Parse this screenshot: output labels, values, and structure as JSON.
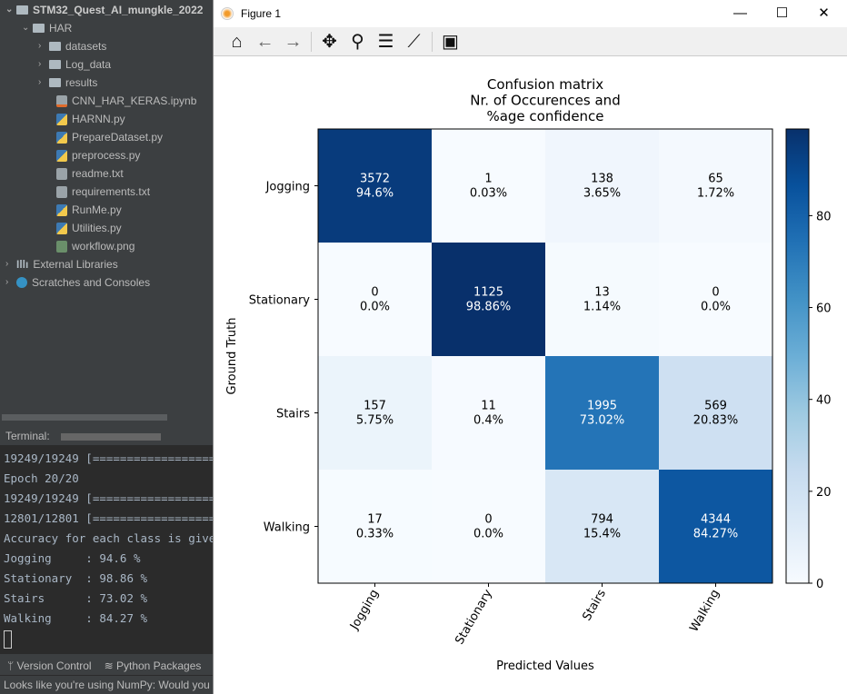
{
  "project": {
    "root": "STM32_Quest_AI_mungkle_2022",
    "har": "HAR",
    "folders": [
      "datasets",
      "Log_data",
      "results"
    ],
    "files": [
      {
        "name": "CNN_HAR_KERAS.ipynb",
        "type": "nb"
      },
      {
        "name": "HARNN.py",
        "type": "py"
      },
      {
        "name": "PrepareDataset.py",
        "type": "py"
      },
      {
        "name": "preprocess.py",
        "type": "py"
      },
      {
        "name": "readme.txt",
        "type": "txt"
      },
      {
        "name": "requirements.txt",
        "type": "txt"
      },
      {
        "name": "RunMe.py",
        "type": "py"
      },
      {
        "name": "Utilities.py",
        "type": "py"
      },
      {
        "name": "workflow.png",
        "type": "png"
      }
    ],
    "external": "External Libraries",
    "scratches": "Scratches and Consoles"
  },
  "terminal": {
    "label": "Terminal:",
    "lines": [
      "19249/19249 [==================",
      "Epoch 20/20",
      "19249/19249 [==================",
      "12801/12801 [==================",
      "Accuracy for each class is given",
      "Jogging     : 94.6 %",
      "Stationary  : 98.86 %",
      "Stairs      : 73.02 %",
      "Walking     : 84.27 %"
    ]
  },
  "bottom": {
    "version_control": "Version Control",
    "python_packages": "Python Packages",
    "status": "Looks like you're using NumPy: Would you"
  },
  "window": {
    "title": "Figure 1",
    "min": "—",
    "max": "☐",
    "close": "✕"
  },
  "chart_data": {
    "type": "heatmap",
    "title": [
      "Confusion matrix",
      "Nr. of Occurences and",
      "%age confidence"
    ],
    "xlabel": "Predicted Values",
    "ylabel": "Ground Truth",
    "x_categories": [
      "Jogging",
      "Stationary",
      "Stairs",
      "Walking"
    ],
    "y_categories": [
      "Jogging",
      "Stationary",
      "Stairs",
      "Walking"
    ],
    "counts": [
      [
        3572,
        1,
        138,
        65
      ],
      [
        0,
        1125,
        13,
        0
      ],
      [
        157,
        11,
        1995,
        569
      ],
      [
        17,
        0,
        794,
        4344
      ]
    ],
    "percents": [
      [
        "94.6%",
        "0.03%",
        "3.65%",
        "1.72%"
      ],
      [
        "0.0%",
        "98.86%",
        "1.14%",
        "0.0%"
      ],
      [
        "5.75%",
        "0.4%",
        "73.02%",
        "20.83%"
      ],
      [
        "0.33%",
        "0.0%",
        "15.4%",
        "84.27%"
      ]
    ],
    "values": [
      [
        94.6,
        0.03,
        3.65,
        1.72
      ],
      [
        0.0,
        98.86,
        1.14,
        0.0
      ],
      [
        5.75,
        0.4,
        73.02,
        20.83
      ],
      [
        0.33,
        0.0,
        15.4,
        84.27
      ]
    ],
    "colormap": "Blues",
    "colorbar_range": [
      0,
      98.86
    ],
    "colorbar_ticks": [
      0,
      20,
      40,
      60,
      80
    ]
  }
}
